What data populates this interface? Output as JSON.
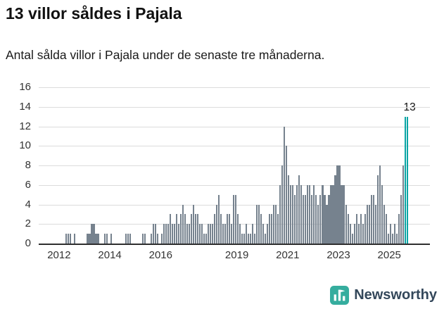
{
  "chart_data": {
    "type": "bar",
    "title": "13 villor såldes i Pajala",
    "subtitle": "Antal sålda villor i Pajala under de senaste tre månaderna.",
    "xlabel": "",
    "ylabel": "",
    "ylim": [
      0,
      16
    ],
    "y_ticks": [
      0,
      2,
      4,
      6,
      8,
      10,
      12,
      14,
      16
    ],
    "x_ticks": [
      2012,
      2014,
      2016,
      2019,
      2021,
      2023,
      2025
    ],
    "x_domain": [
      2011.2,
      2026.6
    ],
    "grid": "horizontal",
    "start_month": "2011-07",
    "frequency": "monthly",
    "highlight_last": 2,
    "annotation": {
      "text": "13",
      "value": 13
    },
    "values": [
      0,
      0,
      0,
      0,
      0,
      0,
      0,
      0,
      0,
      1,
      1,
      1,
      0,
      1,
      0,
      0,
      0,
      0,
      0,
      1,
      1,
      2,
      2,
      1,
      1,
      0,
      0,
      1,
      1,
      0,
      1,
      0,
      0,
      0,
      0,
      0,
      0,
      1,
      1,
      1,
      0,
      0,
      0,
      0,
      0,
      1,
      1,
      0,
      0,
      1,
      2,
      2,
      1,
      0,
      1,
      2,
      2,
      2,
      3,
      2,
      2,
      3,
      2,
      3,
      4,
      3,
      2,
      2,
      3,
      4,
      3,
      3,
      2,
      2,
      1,
      1,
      2,
      2,
      2,
      3,
      4,
      5,
      3,
      2,
      2,
      3,
      3,
      2,
      5,
      5,
      3,
      2,
      1,
      1,
      2,
      1,
      1,
      2,
      1,
      4,
      4,
      3,
      2,
      1,
      2,
      3,
      3,
      4,
      4,
      3,
      6,
      8,
      12,
      10,
      7,
      6,
      6,
      5,
      6,
      7,
      6,
      5,
      5,
      6,
      6,
      5,
      6,
      5,
      4,
      5,
      6,
      5,
      4,
      5,
      6,
      6,
      7,
      8,
      8,
      6,
      6,
      4,
      3,
      2,
      1,
      2,
      3,
      2,
      3,
      2,
      3,
      4,
      4,
      5,
      5,
      4,
      7,
      8,
      6,
      4,
      3,
      1,
      2,
      1,
      2,
      1,
      3,
      5,
      8,
      13,
      13
    ]
  },
  "colors": {
    "bar": "#76828e",
    "highlight": "#0aa5a5",
    "grid": "#dcdcdc",
    "axis": "#2e2e2e",
    "tick_text": "#333333",
    "logo": "#35ad9e",
    "wordmark": "#33475a"
  },
  "footer": {
    "brand": "Newsworthy"
  }
}
